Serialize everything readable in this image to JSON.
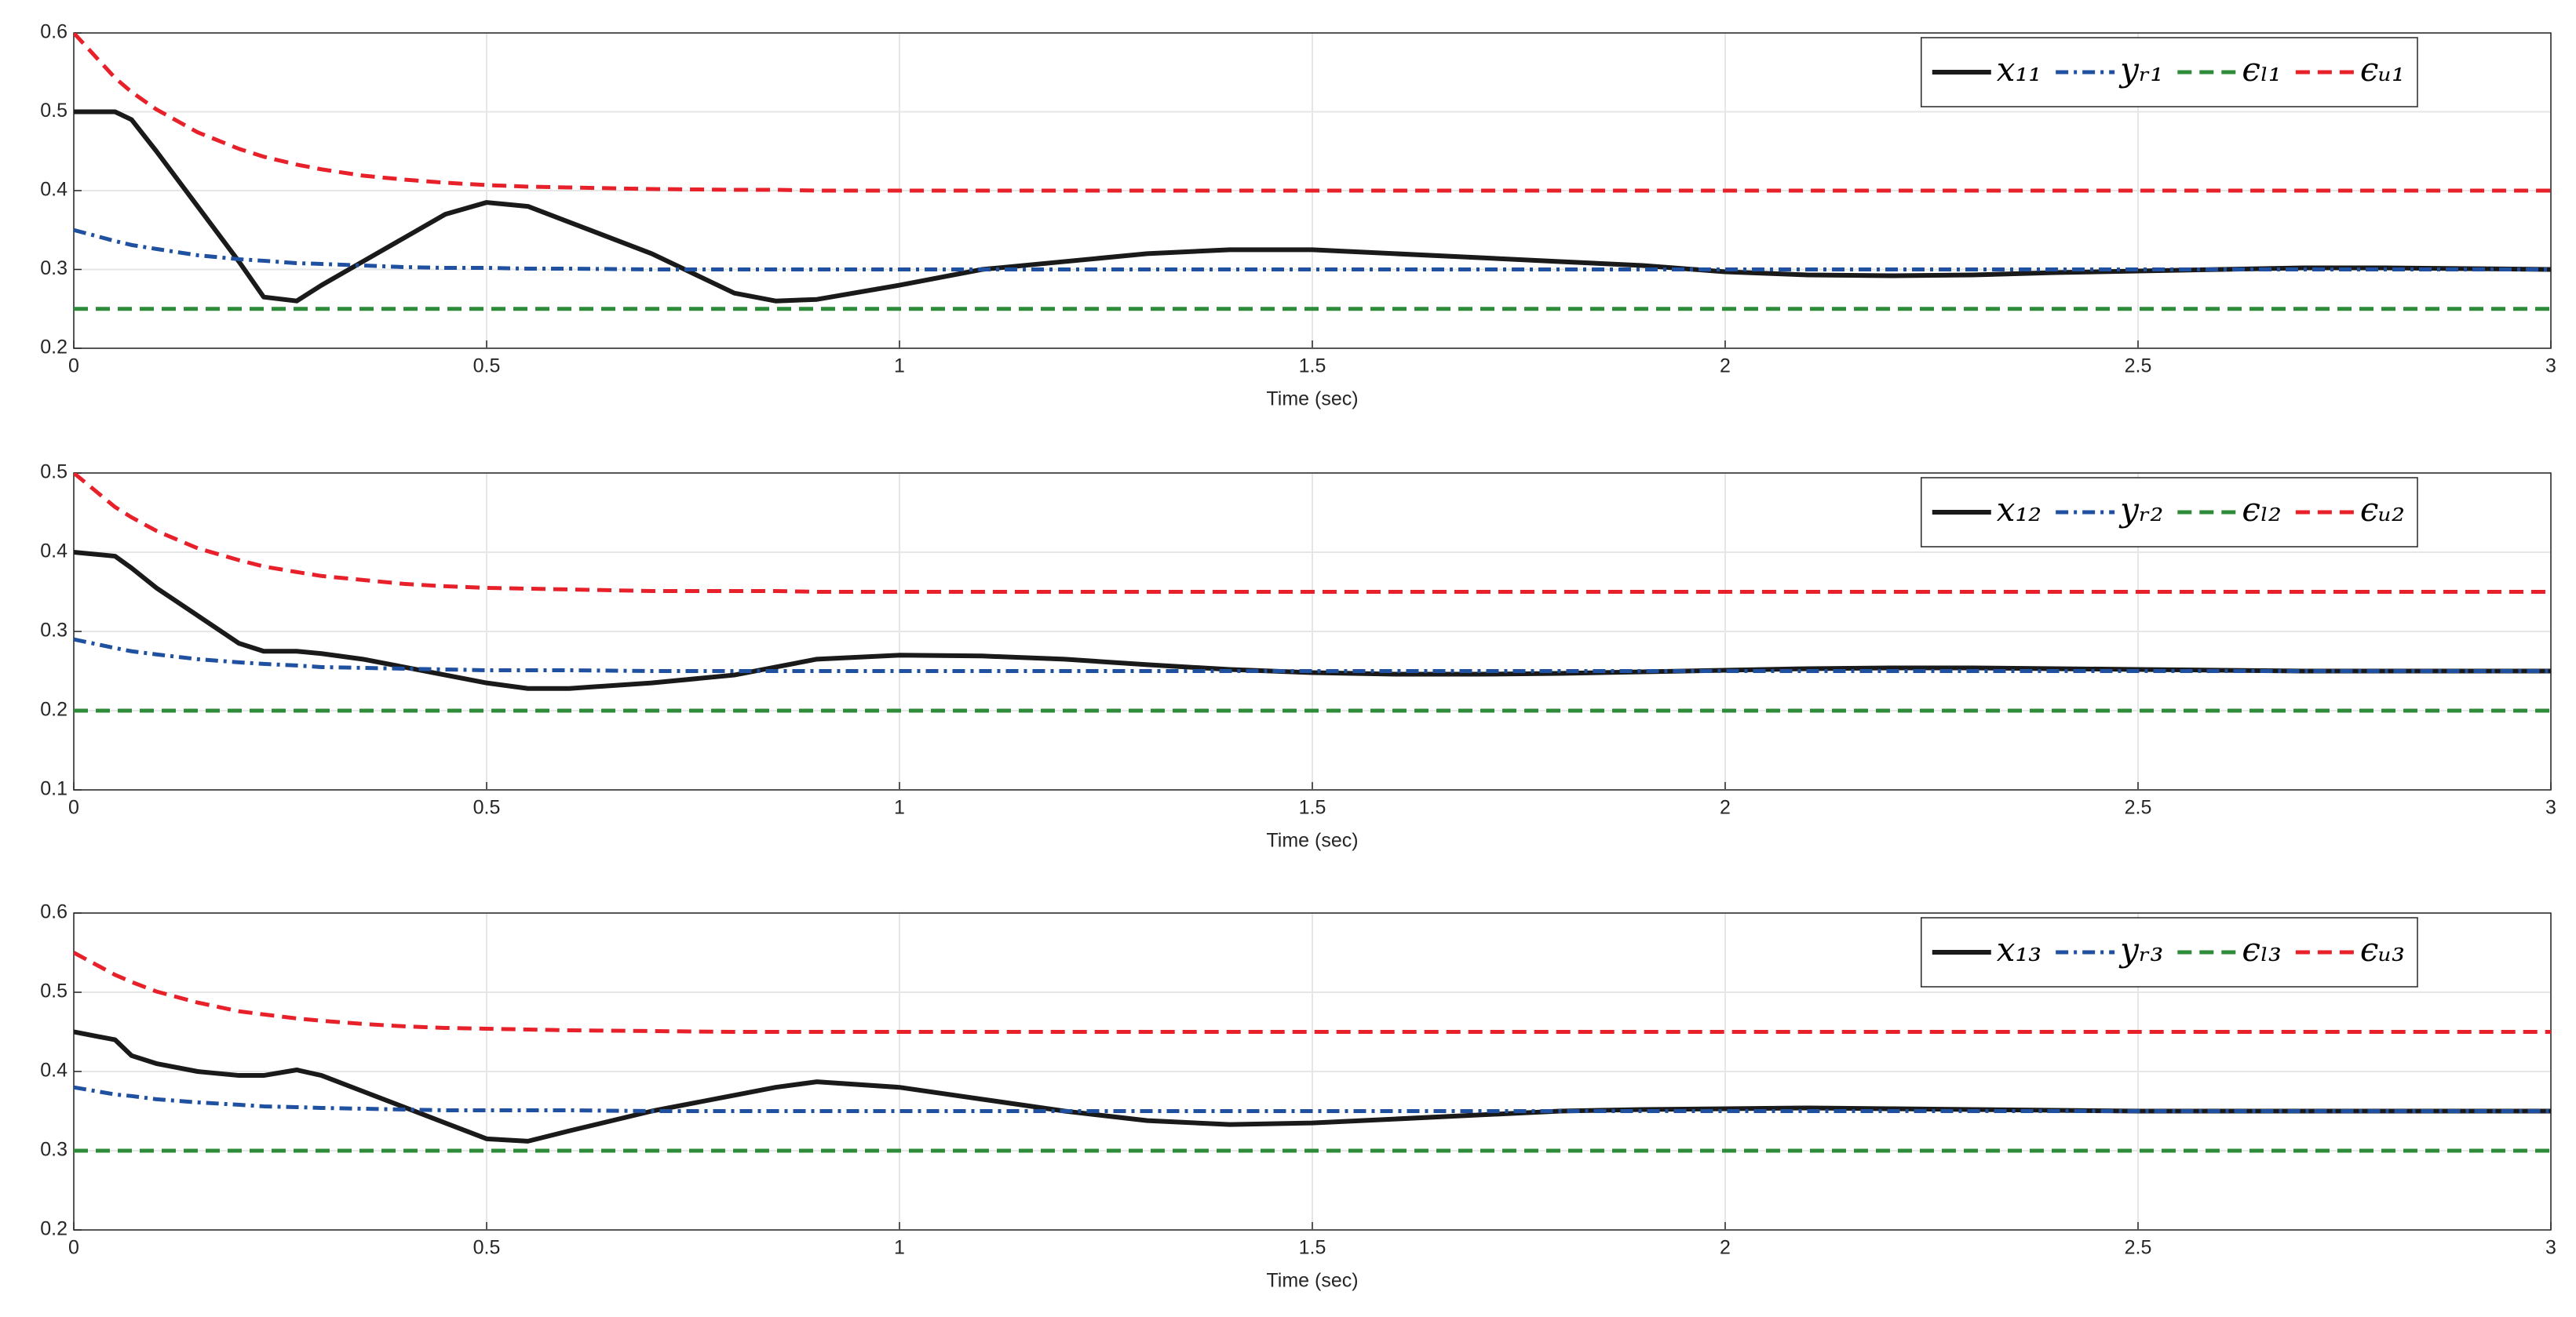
{
  "chart_data": [
    {
      "type": "line",
      "xlabel": "Time (sec)",
      "x": [
        0,
        0.05,
        0.07,
        0.1,
        0.15,
        0.2,
        0.23,
        0.27,
        0.3,
        0.35,
        0.4,
        0.45,
        0.5,
        0.55,
        0.6,
        0.7,
        0.8,
        0.85,
        0.9,
        1,
        1.1,
        1.2,
        1.3,
        1.4,
        1.5,
        1.6,
        1.7,
        1.8,
        1.9,
        2,
        2.1,
        2.2,
        2.3,
        2.4,
        2.5,
        2.6,
        2.7,
        2.8,
        2.9,
        3
      ],
      "xlim": [
        0,
        3
      ],
      "xticks": [
        0,
        0.5,
        1,
        1.5,
        2,
        2.5,
        3
      ],
      "ylim": [
        0.2,
        0.6
      ],
      "yticks": [
        0.2,
        0.3,
        0.4,
        0.5,
        0.6
      ],
      "grid": true,
      "legend": "upper right",
      "series": [
        {
          "name": "x₁₁",
          "color": "#1a1a1a",
          "dash": "solid",
          "values": [
            0.5,
            0.5,
            0.49,
            0.45,
            0.38,
            0.31,
            0.265,
            0.26,
            0.28,
            0.31,
            0.34,
            0.37,
            0.385,
            0.38,
            0.36,
            0.32,
            0.27,
            0.26,
            0.262,
            0.28,
            0.3,
            0.31,
            0.32,
            0.325,
            0.325,
            0.32,
            0.315,
            0.31,
            0.305,
            0.297,
            0.293,
            0.292,
            0.293,
            0.296,
            0.298,
            0.3,
            0.302,
            0.302,
            0.301,
            0.3
          ]
        },
        {
          "name": "yᵣ₁",
          "color": "#2050a0",
          "dash": "dashdot",
          "values": [
            0.35,
            0.336,
            0.331,
            0.326,
            0.318,
            0.313,
            0.311,
            0.308,
            0.307,
            0.305,
            0.303,
            0.302,
            0.302,
            0.301,
            0.301,
            0.3,
            0.3,
            0.3,
            0.3,
            0.3,
            0.3,
            0.3,
            0.3,
            0.3,
            0.3,
            0.3,
            0.3,
            0.3,
            0.3,
            0.3,
            0.3,
            0.3,
            0.3,
            0.3,
            0.3,
            0.3,
            0.3,
            0.3,
            0.3,
            0.3
          ]
        },
        {
          "name": "ϵₗ₁",
          "color": "#2e8b3a",
          "dash": "dashed",
          "values": [
            0.25,
            0.25,
            0.25,
            0.25,
            0.25,
            0.25,
            0.25,
            0.25,
            0.25,
            0.25,
            0.25,
            0.25,
            0.25,
            0.25,
            0.25,
            0.25,
            0.25,
            0.25,
            0.25,
            0.25,
            0.25,
            0.25,
            0.25,
            0.25,
            0.25,
            0.25,
            0.25,
            0.25,
            0.25,
            0.25,
            0.25,
            0.25,
            0.25,
            0.25,
            0.25,
            0.25,
            0.25,
            0.25,
            0.25,
            0.25
          ]
        },
        {
          "name": "ϵᵤ₁",
          "color": "#e8202a",
          "dash": "dashed",
          "values": [
            0.6,
            0.543,
            0.525,
            0.503,
            0.474,
            0.453,
            0.443,
            0.433,
            0.427,
            0.419,
            0.414,
            0.41,
            0.407,
            0.405,
            0.404,
            0.402,
            0.401,
            0.401,
            0.4,
            0.4,
            0.4,
            0.4,
            0.4,
            0.4,
            0.4,
            0.4,
            0.4,
            0.4,
            0.4,
            0.4,
            0.4,
            0.4,
            0.4,
            0.4,
            0.4,
            0.4,
            0.4,
            0.4,
            0.4,
            0.4
          ]
        }
      ]
    },
    {
      "type": "line",
      "xlabel": "Time (sec)",
      "x": [
        0,
        0.05,
        0.07,
        0.1,
        0.15,
        0.2,
        0.23,
        0.27,
        0.3,
        0.35,
        0.4,
        0.45,
        0.5,
        0.55,
        0.6,
        0.7,
        0.8,
        0.85,
        0.9,
        1,
        1.1,
        1.2,
        1.3,
        1.4,
        1.5,
        1.6,
        1.7,
        1.8,
        1.9,
        2,
        2.1,
        2.2,
        2.3,
        2.4,
        2.5,
        2.6,
        2.7,
        2.8,
        2.9,
        3
      ],
      "xlim": [
        0,
        3
      ],
      "xticks": [
        0,
        0.5,
        1,
        1.5,
        2,
        2.5,
        3
      ],
      "ylim": [
        0.1,
        0.5
      ],
      "yticks": [
        0.1,
        0.2,
        0.3,
        0.4,
        0.5
      ],
      "grid": true,
      "legend": "upper right",
      "series": [
        {
          "name": "x₁₂",
          "color": "#1a1a1a",
          "dash": "solid",
          "values": [
            0.4,
            0.395,
            0.38,
            0.355,
            0.32,
            0.285,
            0.275,
            0.275,
            0.272,
            0.265,
            0.255,
            0.245,
            0.235,
            0.228,
            0.228,
            0.235,
            0.245,
            0.255,
            0.265,
            0.27,
            0.269,
            0.265,
            0.258,
            0.252,
            0.248,
            0.246,
            0.246,
            0.247,
            0.249,
            0.251,
            0.253,
            0.254,
            0.254,
            0.253,
            0.252,
            0.251,
            0.25,
            0.25,
            0.25,
            0.25
          ]
        },
        {
          "name": "yᵣ₂",
          "color": "#2050a0",
          "dash": "dashdot",
          "values": [
            0.29,
            0.279,
            0.275,
            0.271,
            0.265,
            0.261,
            0.259,
            0.257,
            0.255,
            0.254,
            0.253,
            0.252,
            0.251,
            0.251,
            0.251,
            0.25,
            0.25,
            0.25,
            0.25,
            0.25,
            0.25,
            0.25,
            0.25,
            0.25,
            0.25,
            0.25,
            0.25,
            0.25,
            0.25,
            0.25,
            0.25,
            0.25,
            0.25,
            0.25,
            0.25,
            0.25,
            0.25,
            0.25,
            0.25,
            0.25
          ]
        },
        {
          "name": "ϵₗ₂",
          "color": "#2e8b3a",
          "dash": "dashed",
          "values": [
            0.2,
            0.2,
            0.2,
            0.2,
            0.2,
            0.2,
            0.2,
            0.2,
            0.2,
            0.2,
            0.2,
            0.2,
            0.2,
            0.2,
            0.2,
            0.2,
            0.2,
            0.2,
            0.2,
            0.2,
            0.2,
            0.2,
            0.2,
            0.2,
            0.2,
            0.2,
            0.2,
            0.2,
            0.2,
            0.2,
            0.2,
            0.2,
            0.2,
            0.2,
            0.2,
            0.2,
            0.2,
            0.2,
            0.2,
            0.2
          ]
        },
        {
          "name": "ϵᵤ₂",
          "color": "#e8202a",
          "dash": "dashed",
          "values": [
            0.5,
            0.457,
            0.444,
            0.427,
            0.405,
            0.39,
            0.382,
            0.375,
            0.37,
            0.365,
            0.36,
            0.357,
            0.355,
            0.354,
            0.353,
            0.351,
            0.351,
            0.351,
            0.35,
            0.35,
            0.35,
            0.35,
            0.35,
            0.35,
            0.35,
            0.35,
            0.35,
            0.35,
            0.35,
            0.35,
            0.35,
            0.35,
            0.35,
            0.35,
            0.35,
            0.35,
            0.35,
            0.35,
            0.35,
            0.35
          ]
        }
      ]
    },
    {
      "type": "line",
      "xlabel": "Time (sec)",
      "x": [
        0,
        0.05,
        0.07,
        0.1,
        0.15,
        0.2,
        0.23,
        0.27,
        0.3,
        0.35,
        0.4,
        0.45,
        0.5,
        0.55,
        0.6,
        0.7,
        0.8,
        0.85,
        0.9,
        1,
        1.1,
        1.2,
        1.3,
        1.4,
        1.5,
        1.6,
        1.7,
        1.8,
        1.9,
        2,
        2.1,
        2.2,
        2.3,
        2.4,
        2.5,
        2.6,
        2.7,
        2.8,
        2.9,
        3
      ],
      "xlim": [
        0,
        3
      ],
      "xticks": [
        0,
        0.5,
        1,
        1.5,
        2,
        2.5,
        3
      ],
      "ylim": [
        0.2,
        0.6
      ],
      "yticks": [
        0.2,
        0.3,
        0.4,
        0.5,
        0.6
      ],
      "grid": true,
      "legend": "upper right",
      "series": [
        {
          "name": "x₁₃",
          "color": "#1a1a1a",
          "dash": "solid",
          "values": [
            0.45,
            0.44,
            0.42,
            0.41,
            0.4,
            0.395,
            0.395,
            0.402,
            0.395,
            0.375,
            0.355,
            0.335,
            0.315,
            0.312,
            0.325,
            0.35,
            0.37,
            0.38,
            0.387,
            0.38,
            0.365,
            0.35,
            0.338,
            0.333,
            0.335,
            0.34,
            0.345,
            0.35,
            0.352,
            0.353,
            0.354,
            0.353,
            0.352,
            0.351,
            0.35,
            0.35,
            0.35,
            0.35,
            0.35,
            0.35
          ]
        },
        {
          "name": "yᵣ₃",
          "color": "#2050a0",
          "dash": "dashdot",
          "values": [
            0.38,
            0.371,
            0.369,
            0.365,
            0.361,
            0.358,
            0.356,
            0.355,
            0.354,
            0.353,
            0.352,
            0.351,
            0.351,
            0.351,
            0.351,
            0.35,
            0.35,
            0.35,
            0.35,
            0.35,
            0.35,
            0.35,
            0.35,
            0.35,
            0.35,
            0.35,
            0.35,
            0.35,
            0.35,
            0.35,
            0.35,
            0.35,
            0.35,
            0.35,
            0.35,
            0.35,
            0.35,
            0.35,
            0.35,
            0.35
          ]
        },
        {
          "name": "ϵₗ₃",
          "color": "#2e8b3a",
          "dash": "dashed",
          "values": [
            0.3,
            0.3,
            0.3,
            0.3,
            0.3,
            0.3,
            0.3,
            0.3,
            0.3,
            0.3,
            0.3,
            0.3,
            0.3,
            0.3,
            0.3,
            0.3,
            0.3,
            0.3,
            0.3,
            0.3,
            0.3,
            0.3,
            0.3,
            0.3,
            0.3,
            0.3,
            0.3,
            0.3,
            0.3,
            0.3,
            0.3,
            0.3,
            0.3,
            0.3,
            0.3,
            0.3,
            0.3,
            0.3,
            0.3,
            0.3
          ]
        },
        {
          "name": "ϵᵤ₃",
          "color": "#e8202a",
          "dash": "dashed",
          "values": [
            0.55,
            0.522,
            0.513,
            0.501,
            0.487,
            0.476,
            0.472,
            0.467,
            0.464,
            0.46,
            0.457,
            0.455,
            0.454,
            0.453,
            0.452,
            0.451,
            0.45,
            0.45,
            0.45,
            0.45,
            0.45,
            0.45,
            0.45,
            0.45,
            0.45,
            0.45,
            0.45,
            0.45,
            0.45,
            0.45,
            0.45,
            0.45,
            0.45,
            0.45,
            0.45,
            0.45,
            0.45,
            0.45,
            0.45,
            0.45
          ]
        }
      ]
    }
  ]
}
